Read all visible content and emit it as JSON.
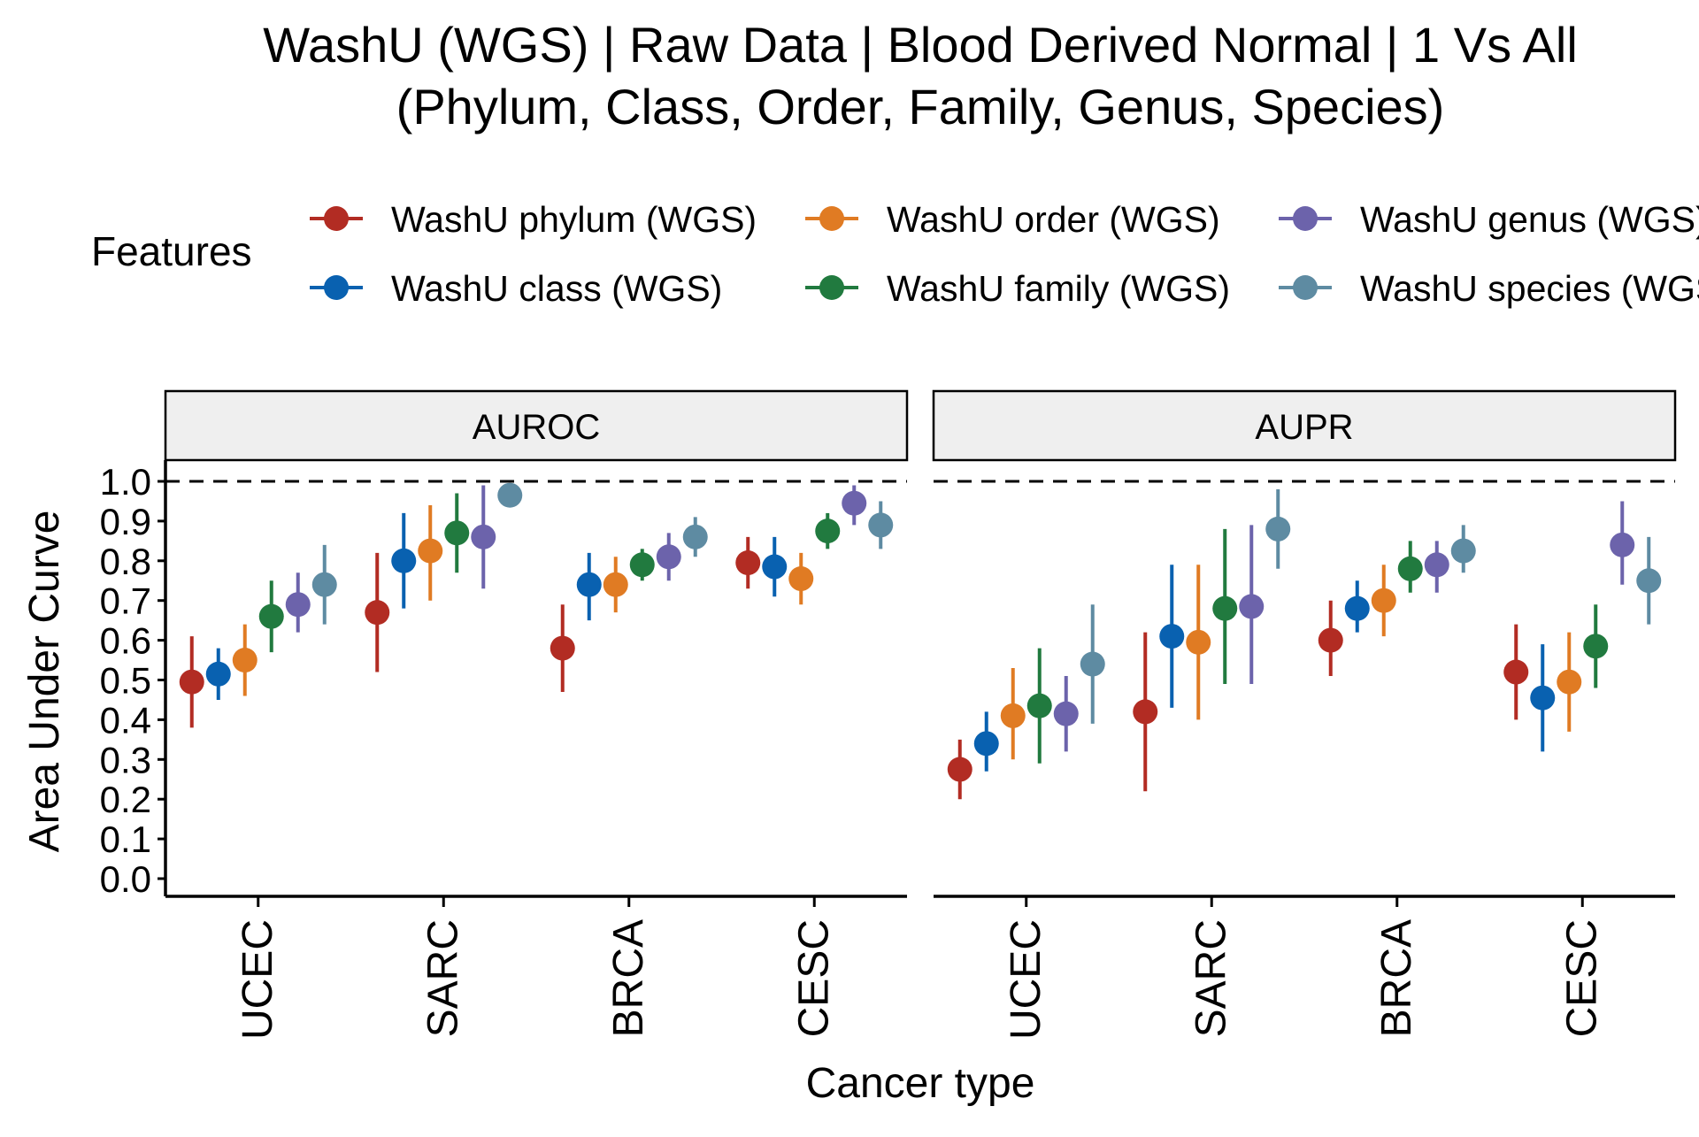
{
  "chart_data": {
    "type": "scatter",
    "title_line1": "WashU (WGS) | Raw Data | Blood Derived Normal | 1 Vs All",
    "title_line2": "(Phylum, Class, Order, Family, Genus, Species)",
    "xlabel": "Cancer type",
    "ylabel": "Area Under Curve",
    "ylim": [
      0,
      1
    ],
    "yticks": [
      "0.0",
      "0.1",
      "0.2",
      "0.3",
      "0.4",
      "0.5",
      "0.6",
      "0.7",
      "0.8",
      "0.9",
      "1.0"
    ],
    "reference_line": 1.0,
    "grid": false,
    "legend_title": "Features",
    "legend_position": "top",
    "categories": [
      "UCEC",
      "SARC",
      "BRCA",
      "CESC"
    ],
    "series": [
      {
        "name": "WashU phylum (WGS)",
        "color": "#B22C23"
      },
      {
        "name": "WashU class (WGS)",
        "color": "#0961B0"
      },
      {
        "name": "WashU order (WGS)",
        "color": "#E07B23"
      },
      {
        "name": "WashU family (WGS)",
        "color": "#217A3F"
      },
      {
        "name": "WashU genus (WGS)",
        "color": "#6C63AB"
      },
      {
        "name": "WashU species (WGS)",
        "color": "#5E8BA2"
      }
    ],
    "panels": [
      {
        "label": "AUROC",
        "values": [
          [
            0.495,
            0.515,
            0.55,
            0.66,
            0.69,
            0.74
          ],
          [
            0.67,
            0.8,
            0.825,
            0.87,
            0.86,
            0.965
          ],
          [
            0.58,
            0.74,
            0.74,
            0.79,
            0.81,
            0.86
          ],
          [
            0.795,
            0.785,
            0.755,
            0.875,
            0.945,
            0.89
          ]
        ],
        "lower": [
          [
            0.38,
            0.45,
            0.46,
            0.57,
            0.62,
            0.64
          ],
          [
            0.52,
            0.68,
            0.7,
            0.77,
            0.73,
            0.96
          ],
          [
            0.47,
            0.65,
            0.67,
            0.75,
            0.75,
            0.81
          ],
          [
            0.73,
            0.71,
            0.69,
            0.83,
            0.89,
            0.83
          ]
        ],
        "upper": [
          [
            0.61,
            0.58,
            0.64,
            0.75,
            0.77,
            0.84
          ],
          [
            0.82,
            0.92,
            0.94,
            0.97,
            0.99,
            0.97
          ],
          [
            0.69,
            0.82,
            0.81,
            0.83,
            0.87,
            0.91
          ],
          [
            0.86,
            0.86,
            0.82,
            0.92,
            0.99,
            0.95
          ]
        ]
      },
      {
        "label": "AUPR",
        "values": [
          [
            0.275,
            0.34,
            0.41,
            0.435,
            0.415,
            0.54
          ],
          [
            0.42,
            0.61,
            0.595,
            0.68,
            0.685,
            0.88
          ],
          [
            0.6,
            0.68,
            0.7,
            0.78,
            0.79,
            0.825
          ],
          [
            0.52,
            0.455,
            0.495,
            0.585,
            0.84,
            0.75
          ]
        ],
        "lower": [
          [
            0.2,
            0.27,
            0.3,
            0.29,
            0.32,
            0.39
          ],
          [
            0.22,
            0.43,
            0.4,
            0.49,
            0.49,
            0.78
          ],
          [
            0.51,
            0.62,
            0.61,
            0.72,
            0.72,
            0.77
          ],
          [
            0.4,
            0.32,
            0.37,
            0.48,
            0.74,
            0.64
          ]
        ],
        "upper": [
          [
            0.35,
            0.42,
            0.53,
            0.58,
            0.51,
            0.69
          ],
          [
            0.62,
            0.79,
            0.79,
            0.88,
            0.89,
            0.98
          ],
          [
            0.7,
            0.75,
            0.79,
            0.85,
            0.85,
            0.89
          ],
          [
            0.64,
            0.59,
            0.62,
            0.69,
            0.95,
            0.86
          ]
        ]
      }
    ]
  }
}
